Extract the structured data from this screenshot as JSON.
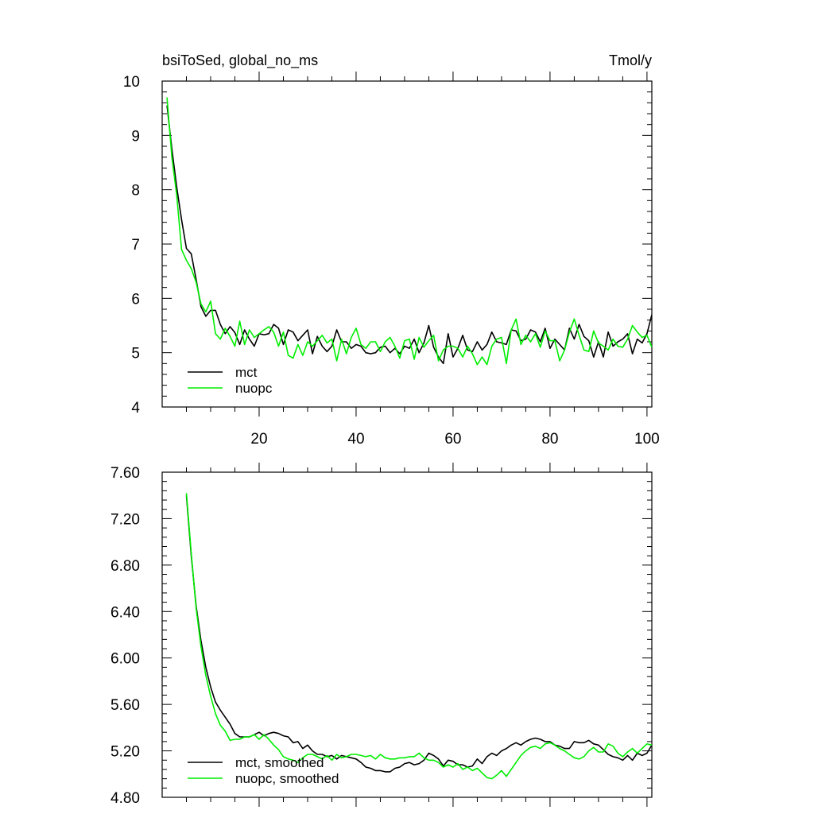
{
  "figure": {
    "left_title": "bsiToSed, global_no_ms",
    "right_title": "Tmol/y"
  },
  "chart_data": [
    {
      "type": "line",
      "title": "bsiToSed, global_no_ms",
      "units": "Tmol/y",
      "xlim": [
        0,
        101
      ],
      "ylim": [
        4,
        10
      ],
      "x_ticks": [
        20,
        40,
        60,
        80,
        100
      ],
      "x_tick_labels": [
        "20",
        "40",
        "60",
        "80",
        "100"
      ],
      "y_ticks": [
        4,
        5,
        6,
        7,
        8,
        9,
        10
      ],
      "y_tick_labels": [
        "4",
        "5",
        "6",
        "7",
        "8",
        "9",
        "10"
      ],
      "grid": false,
      "legend_position": "bottom-left",
      "x_start": 1,
      "series": [
        {
          "name": "mct",
          "color": "#000000",
          "values": [
            9.55,
            8.75,
            8.05,
            7.45,
            6.92,
            6.82,
            6.35,
            5.85,
            5.67,
            5.78,
            5.78,
            5.52,
            5.35,
            5.48,
            5.37,
            5.15,
            5.42,
            5.25,
            5.12,
            5.35,
            5.33,
            5.35,
            5.52,
            5.45,
            5.15,
            5.42,
            5.38,
            5.22,
            5.32,
            5.42,
            4.98,
            5.3,
            5.12,
            5.02,
            5.12,
            5.42,
            5.2,
            5.2,
            5.08,
            5.15,
            5.12,
            5.0,
            4.98,
            5.0,
            5.1,
            5.12,
            5.0,
            5.08,
            4.98,
            5.12,
            5.08,
            5.25,
            5.0,
            5.18,
            5.5,
            5.1,
            4.92,
            4.8,
            5.35,
            4.92,
            5.08,
            5.32,
            5.05,
            5.02,
            5.2,
            5.05,
            5.15,
            5.38,
            5.2,
            5.18,
            5.15,
            5.42,
            5.4,
            5.22,
            5.25,
            5.42,
            5.38,
            5.2,
            5.45,
            5.08,
            5.25,
            5.15,
            5.05,
            5.45,
            5.25,
            5.52,
            5.3,
            5.22,
            4.92,
            5.2,
            4.92,
            5.38,
            5.12,
            5.2,
            5.25,
            5.35,
            4.98,
            5.25,
            5.18,
            5.35,
            5.7
          ]
        },
        {
          "name": "nuopc",
          "color": "#00ee00",
          "values": [
            9.7,
            8.6,
            7.9,
            6.9,
            6.7,
            6.55,
            6.3,
            5.9,
            5.75,
            5.95,
            5.35,
            5.25,
            5.45,
            5.3,
            5.12,
            5.58,
            5.15,
            5.42,
            5.28,
            5.35,
            5.42,
            5.48,
            5.38,
            5.12,
            5.38,
            4.95,
            4.9,
            5.15,
            4.95,
            5.2,
            5.12,
            5.22,
            5.32,
            5.18,
            5.25,
            4.85,
            5.25,
            4.98,
            5.28,
            5.45,
            5.15,
            5.08,
            5.2,
            5.2,
            5.02,
            5.2,
            5.28,
            5.12,
            4.9,
            5.22,
            5.25,
            4.88,
            5.28,
            5.1,
            5.22,
            5.32,
            4.85,
            5.05,
            5.12,
            5.12,
            5.08,
            4.92,
            5.12,
            4.98,
            4.78,
            4.92,
            4.78,
            5.12,
            5.25,
            5.28,
            4.8,
            5.42,
            5.62,
            5.15,
            5.32,
            5.2,
            5.35,
            5.1,
            5.4,
            5.22,
            5.22,
            4.85,
            5.05,
            5.38,
            5.62,
            5.32,
            5.05,
            5.02,
            5.4,
            5.18,
            5.12,
            5.05,
            5.25,
            5.12,
            5.1,
            5.25,
            5.5,
            5.38,
            5.28,
            5.32,
            5.1
          ]
        }
      ]
    },
    {
      "type": "line",
      "title": "",
      "xlim": [
        0,
        101
      ],
      "ylim": [
        4.8,
        7.6
      ],
      "x_ticks": [
        20,
        40,
        60,
        80,
        100
      ],
      "y_ticks": [
        4.8,
        5.2,
        5.6,
        6.0,
        6.4,
        6.8,
        7.2,
        7.6
      ],
      "y_tick_labels": [
        "4.80",
        "5.20",
        "5.60",
        "6.00",
        "6.40",
        "6.80",
        "7.20",
        "7.60"
      ],
      "grid": false,
      "legend_position": "bottom-left",
      "x_start": 5,
      "series": [
        {
          "name": "mct, smoothed",
          "color": "#000000",
          "values": [
            7.4,
            6.88,
            6.45,
            6.15,
            5.92,
            5.75,
            5.62,
            5.55,
            5.49,
            5.43,
            5.35,
            5.32,
            5.32,
            5.32,
            5.34,
            5.36,
            5.33,
            5.35,
            5.36,
            5.35,
            5.33,
            5.32,
            5.27,
            5.28,
            5.22,
            5.25,
            5.2,
            5.17,
            5.17,
            5.15,
            5.16,
            5.13,
            5.16,
            5.15,
            5.14,
            5.13,
            5.1,
            5.06,
            5.05,
            5.03,
            5.03,
            5.02,
            5.02,
            5.05,
            5.06,
            5.09,
            5.1,
            5.08,
            5.09,
            5.12,
            5.18,
            5.16,
            5.13,
            5.07,
            5.12,
            5.11,
            5.08,
            5.08,
            5.06,
            5.07,
            5.13,
            5.09,
            5.15,
            5.18,
            5.16,
            5.2,
            5.22,
            5.25,
            5.27,
            5.25,
            5.28,
            5.3,
            5.31,
            5.3,
            5.28,
            5.28,
            5.25,
            5.24,
            5.22,
            5.22,
            5.28,
            5.27,
            5.27,
            5.29,
            5.26,
            5.25,
            5.21,
            5.17,
            5.15,
            5.14,
            5.12,
            5.16,
            5.12,
            5.18,
            5.16,
            5.18,
            5.25
          ]
        },
        {
          "name": "nuopc, smoothed",
          "color": "#00ee00",
          "values": [
            7.42,
            6.9,
            6.43,
            6.1,
            5.85,
            5.67,
            5.52,
            5.42,
            5.37,
            5.29,
            5.3,
            5.3,
            5.32,
            5.32,
            5.34,
            5.3,
            5.34,
            5.3,
            5.25,
            5.21,
            5.15,
            5.13,
            5.12,
            5.1,
            5.14,
            5.17,
            5.17,
            5.15,
            5.13,
            5.16,
            5.12,
            5.17,
            5.14,
            5.15,
            5.17,
            5.17,
            5.16,
            5.15,
            5.16,
            5.13,
            5.17,
            5.14,
            5.13,
            5.13,
            5.14,
            5.14,
            5.15,
            5.15,
            5.18,
            5.14,
            5.12,
            5.12,
            5.1,
            5.06,
            5.08,
            5.06,
            5.09,
            5.04,
            5.06,
            5.03,
            5.05,
            5.01,
            4.97,
            4.96,
            4.99,
            5.03,
            4.98,
            5.04,
            5.1,
            5.16,
            5.2,
            5.23,
            5.24,
            5.22,
            5.26,
            5.27,
            5.25,
            5.22,
            5.2,
            5.17,
            5.14,
            5.13,
            5.15,
            5.2,
            5.23,
            5.19,
            5.19,
            5.26,
            5.24,
            5.18,
            5.15,
            5.19,
            5.22,
            5.18,
            5.22,
            5.26,
            5.25
          ]
        }
      ]
    }
  ]
}
